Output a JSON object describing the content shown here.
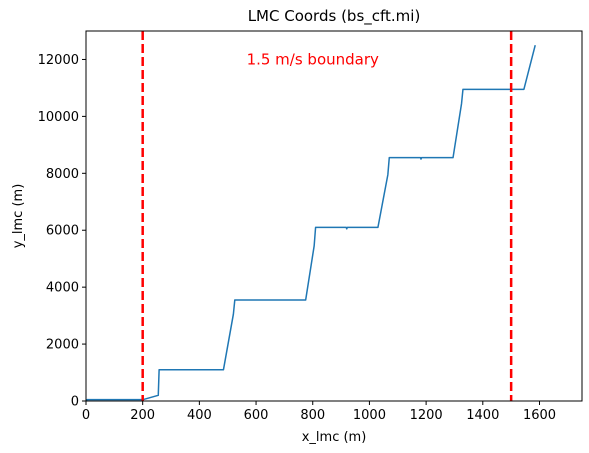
{
  "chart_data": {
    "type": "line",
    "title": "LMC Coords (bs_cft.mi)",
    "xlabel": "x_lmc (m)",
    "ylabel": "y_lmc (m)",
    "xlim": [
      0,
      1750
    ],
    "ylim": [
      0,
      13000
    ],
    "xticks": [
      0,
      200,
      400,
      600,
      800,
      1000,
      1200,
      1400,
      1600
    ],
    "yticks": [
      0,
      2000,
      4000,
      6000,
      8000,
      10000,
      12000
    ],
    "grid": false,
    "series": [
      {
        "color": "#1f77b4",
        "points": [
          [
            0,
            20
          ],
          [
            5,
            50
          ],
          [
            198,
            50
          ],
          [
            200,
            20
          ],
          [
            202,
            50
          ],
          [
            255,
            200
          ],
          [
            258,
            1100
          ],
          [
            485,
            1100
          ],
          [
            520,
            3050
          ],
          [
            525,
            3550
          ],
          [
            775,
            3550
          ],
          [
            805,
            5450
          ],
          [
            810,
            6100
          ],
          [
            918,
            6100
          ],
          [
            920,
            6050
          ],
          [
            922,
            6100
          ],
          [
            1030,
            6100
          ],
          [
            1065,
            7950
          ],
          [
            1070,
            8550
          ],
          [
            1180,
            8550
          ],
          [
            1182,
            8500
          ],
          [
            1184,
            8550
          ],
          [
            1295,
            8550
          ],
          [
            1325,
            10450
          ],
          [
            1330,
            10950
          ],
          [
            1545,
            10950
          ],
          [
            1585,
            12500
          ]
        ]
      }
    ],
    "vlines": [
      {
        "x": 200,
        "color": "#ff0000",
        "style": "dashed"
      },
      {
        "x": 1500,
        "color": "#ff0000",
        "style": "dashed"
      }
    ],
    "annotations": [
      {
        "text": "1.5 m/s boundary",
        "x": 800,
        "y": 12000,
        "color": "#ff0000"
      }
    ]
  }
}
